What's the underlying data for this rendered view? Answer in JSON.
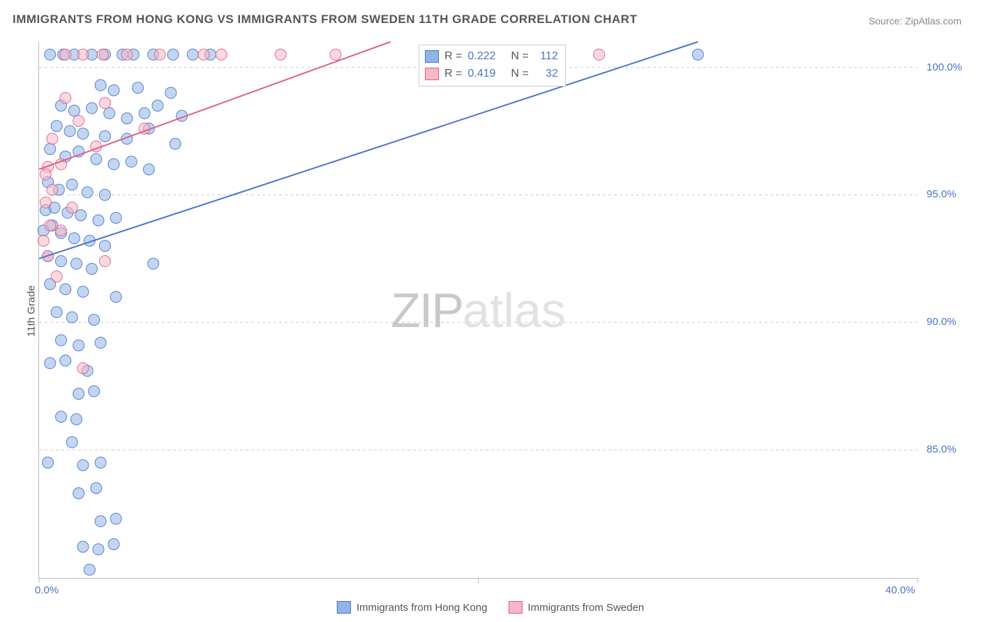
{
  "title": "IMMIGRANTS FROM HONG KONG VS IMMIGRANTS FROM SWEDEN 11TH GRADE CORRELATION CHART",
  "source_label": "Source: ",
  "source_value": "ZipAtlas.com",
  "watermark_zip": "ZIP",
  "watermark_atlas": "atlas",
  "chart": {
    "type": "scatter",
    "background_color": "#ffffff",
    "grid_color": "#cccccc",
    "axis_color": "#bbbbbb",
    "xlim": [
      0,
      40
    ],
    "ylim": [
      80,
      101
    ],
    "xticks": [
      0,
      20,
      40
    ],
    "xtick_labels": [
      "0.0%",
      "",
      "40.0%"
    ],
    "yticks": [
      85,
      90,
      95,
      100
    ],
    "ytick_labels": [
      "85.0%",
      "90.0%",
      "95.0%",
      "100.0%"
    ],
    "ylabel": "11th Grade",
    "ylabel_fontsize": 15,
    "tick_fontsize": 15,
    "tick_color": "#4a74c9",
    "marker_radius": 8,
    "marker_opacity": 0.55,
    "marker_stroke_opacity": 0.9,
    "line_width": 2,
    "series": [
      {
        "name": "Immigrants from Hong Kong",
        "color_fill": "#90b4e8",
        "color_stroke": "#4a74c9",
        "r_value": "0.222",
        "n_value": "112",
        "trend_line": {
          "x1": 0,
          "y1": 92.5,
          "x2": 30,
          "y2": 101
        },
        "points": [
          [
            0.5,
            100.5
          ],
          [
            1.1,
            100.5
          ],
          [
            1.6,
            100.5
          ],
          [
            2.4,
            100.5
          ],
          [
            3.0,
            100.5
          ],
          [
            3.8,
            100.5
          ],
          [
            4.3,
            100.5
          ],
          [
            5.2,
            100.5
          ],
          [
            6.1,
            100.5
          ],
          [
            7.0,
            100.5
          ],
          [
            7.8,
            100.5
          ],
          [
            30.0,
            100.5
          ],
          [
            2.8,
            99.3
          ],
          [
            3.4,
            99.1
          ],
          [
            4.5,
            99.2
          ],
          [
            6.0,
            99.0
          ],
          [
            1.0,
            98.5
          ],
          [
            1.6,
            98.3
          ],
          [
            2.4,
            98.4
          ],
          [
            3.2,
            98.2
          ],
          [
            4.0,
            98.0
          ],
          [
            4.8,
            98.2
          ],
          [
            5.4,
            98.5
          ],
          [
            6.5,
            98.1
          ],
          [
            0.8,
            97.7
          ],
          [
            1.4,
            97.5
          ],
          [
            2.0,
            97.4
          ],
          [
            3.0,
            97.3
          ],
          [
            4.0,
            97.2
          ],
          [
            5.0,
            97.6
          ],
          [
            6.2,
            97.0
          ],
          [
            0.5,
            96.8
          ],
          [
            1.2,
            96.5
          ],
          [
            1.8,
            96.7
          ],
          [
            2.6,
            96.4
          ],
          [
            3.4,
            96.2
          ],
          [
            4.2,
            96.3
          ],
          [
            5.0,
            96.0
          ],
          [
            0.4,
            95.5
          ],
          [
            0.9,
            95.2
          ],
          [
            1.5,
            95.4
          ],
          [
            2.2,
            95.1
          ],
          [
            3.0,
            95.0
          ],
          [
            0.3,
            94.4
          ],
          [
            0.7,
            94.5
          ],
          [
            1.3,
            94.3
          ],
          [
            1.9,
            94.2
          ],
          [
            2.7,
            94.0
          ],
          [
            3.5,
            94.1
          ],
          [
            0.2,
            93.6
          ],
          [
            0.6,
            93.8
          ],
          [
            1.0,
            93.5
          ],
          [
            1.6,
            93.3
          ],
          [
            2.3,
            93.2
          ],
          [
            3.0,
            93.0
          ],
          [
            0.4,
            92.6
          ],
          [
            1.0,
            92.4
          ],
          [
            1.7,
            92.3
          ],
          [
            2.4,
            92.1
          ],
          [
            5.2,
            92.3
          ],
          [
            0.5,
            91.5
          ],
          [
            1.2,
            91.3
          ],
          [
            2.0,
            91.2
          ],
          [
            3.5,
            91.0
          ],
          [
            0.8,
            90.4
          ],
          [
            1.5,
            90.2
          ],
          [
            2.5,
            90.1
          ],
          [
            1.0,
            89.3
          ],
          [
            1.8,
            89.1
          ],
          [
            2.8,
            89.2
          ],
          [
            0.5,
            88.4
          ],
          [
            1.2,
            88.5
          ],
          [
            2.2,
            88.1
          ],
          [
            1.8,
            87.2
          ],
          [
            2.5,
            87.3
          ],
          [
            1.0,
            86.3
          ],
          [
            1.7,
            86.2
          ],
          [
            1.5,
            85.3
          ],
          [
            0.4,
            84.5
          ],
          [
            2.0,
            84.4
          ],
          [
            2.8,
            84.5
          ],
          [
            1.8,
            83.3
          ],
          [
            2.6,
            83.5
          ],
          [
            2.8,
            82.2
          ],
          [
            3.5,
            82.3
          ],
          [
            2.0,
            81.2
          ],
          [
            2.7,
            81.1
          ],
          [
            3.4,
            81.3
          ],
          [
            2.3,
            80.3
          ]
        ]
      },
      {
        "name": "Immigrants from Sweden",
        "color_fill": "#f4b8c6",
        "color_stroke": "#e05f86",
        "r_value": "0.419",
        "n_value": "32",
        "trend_line": {
          "x1": 0,
          "y1": 96.0,
          "x2": 16,
          "y2": 101
        },
        "points": [
          [
            1.2,
            100.5
          ],
          [
            2.0,
            100.5
          ],
          [
            2.9,
            100.5
          ],
          [
            4.0,
            100.5
          ],
          [
            5.5,
            100.5
          ],
          [
            7.5,
            100.5
          ],
          [
            8.3,
            100.5
          ],
          [
            11.0,
            100.5
          ],
          [
            13.5,
            100.5
          ],
          [
            18.0,
            100.5
          ],
          [
            20.0,
            100.5
          ],
          [
            25.5,
            100.5
          ],
          [
            1.2,
            98.8
          ],
          [
            3.0,
            98.6
          ],
          [
            1.8,
            97.9
          ],
          [
            4.8,
            97.6
          ],
          [
            0.6,
            97.2
          ],
          [
            2.6,
            96.9
          ],
          [
            1.0,
            96.2
          ],
          [
            0.4,
            96.1
          ],
          [
            0.3,
            95.8
          ],
          [
            0.6,
            95.2
          ],
          [
            0.3,
            94.7
          ],
          [
            1.5,
            94.5
          ],
          [
            0.5,
            93.8
          ],
          [
            1.0,
            93.6
          ],
          [
            0.2,
            93.2
          ],
          [
            0.4,
            92.6
          ],
          [
            3.0,
            92.4
          ],
          [
            0.8,
            91.8
          ],
          [
            2.0,
            88.2
          ]
        ]
      }
    ],
    "stats_box": {
      "r_label": "R",
      "n_label": "N",
      "eq": "="
    }
  },
  "legend": [
    {
      "label": "Immigrants from Hong Kong",
      "fill": "#90b4e8",
      "stroke": "#4a74c9"
    },
    {
      "label": "Immigrants from Sweden",
      "fill": "#f4b8c6",
      "stroke": "#e05f86"
    }
  ]
}
